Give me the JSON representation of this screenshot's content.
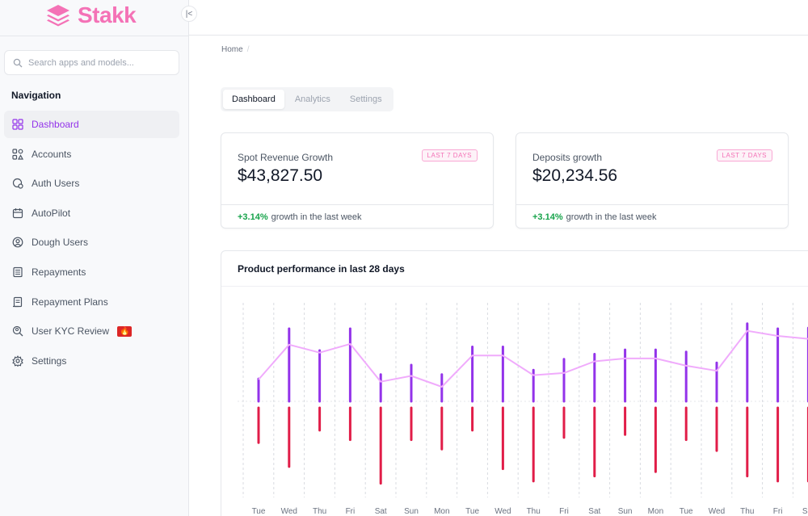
{
  "app": {
    "name": "Stakk"
  },
  "sidebar": {
    "search_placeholder": "Search apps and models...",
    "nav_heading": "Navigation",
    "items": [
      {
        "label": "Dashboard",
        "icon": "grid-icon",
        "active": true
      },
      {
        "label": "Accounts",
        "icon": "accounts-icon",
        "active": false
      },
      {
        "label": "Auth Users",
        "icon": "auth-user-icon",
        "active": false
      },
      {
        "label": "AutoPilot",
        "icon": "calendar-icon",
        "active": false
      },
      {
        "label": "Dough Users",
        "icon": "user-circle-icon",
        "active": false
      },
      {
        "label": "Repayments",
        "icon": "receipt-icon",
        "active": false
      },
      {
        "label": "Repayment Plans",
        "icon": "document-icon",
        "active": false
      },
      {
        "label": "User KYC Review",
        "icon": "kyc-search-icon",
        "active": false,
        "badge": "🔥"
      },
      {
        "label": "Settings",
        "icon": "gear-icon",
        "active": false
      }
    ]
  },
  "breadcrumb": {
    "home": "Home",
    "separator": "/"
  },
  "tabs": [
    {
      "label": "Dashboard",
      "active": true
    },
    {
      "label": "Analytics",
      "active": false
    },
    {
      "label": "Settings",
      "active": false
    }
  ],
  "cards": [
    {
      "title": "Spot Revenue Growth",
      "value": "$43,827.50",
      "badge": "LAST 7 DAYS",
      "growth": "+3.14%",
      "growth_text": "growth in the last week"
    },
    {
      "title": "Deposits growth",
      "value": "$20,234.56",
      "badge": "LAST 7 DAYS",
      "growth": "+3.14%",
      "growth_text": "growth in the last week"
    }
  ],
  "chart_title": "Product performance in last 28 days",
  "chart_data": {
    "type": "bar",
    "title": "Product performance in last 28 days",
    "categories": [
      "Tue",
      "Wed",
      "Thu",
      "Fri",
      "Sat",
      "Sun",
      "Mon",
      "Tue",
      "Wed",
      "Thu",
      "Fri",
      "Sat",
      "Sun",
      "Mon",
      "Tue",
      "Wed",
      "Thu",
      "Fri",
      "Sat"
    ],
    "series": [
      {
        "values": [
          31,
          100,
          70,
          100,
          37,
          50,
          37,
          75,
          75,
          43,
          58,
          65,
          71,
          71,
          68,
          53,
          107,
          100,
          101
        ],
        "color": "#9333ea"
      },
      {
        "values": [
          -48,
          -81,
          -31,
          -44,
          -104,
          -44,
          -57,
          -31,
          -84,
          -101,
          -41,
          -94,
          -37,
          -88,
          -44,
          -59,
          -94,
          -101,
          -101
        ],
        "color": "#e11d48"
      },
      {
        "values": [
          30,
          78,
          67,
          79,
          27,
          35,
          20,
          63,
          63,
          36,
          39,
          55,
          59,
          59,
          49,
          42,
          97,
          90,
          86
        ],
        "color": "#f0abfc",
        "style": "line"
      }
    ],
    "grid": "vertical-dashed",
    "baseline": 0
  },
  "colors": {
    "accent": "#9333ea",
    "brand": "#f472b6",
    "positive": "#16a34a",
    "negative": "#e11d48"
  }
}
